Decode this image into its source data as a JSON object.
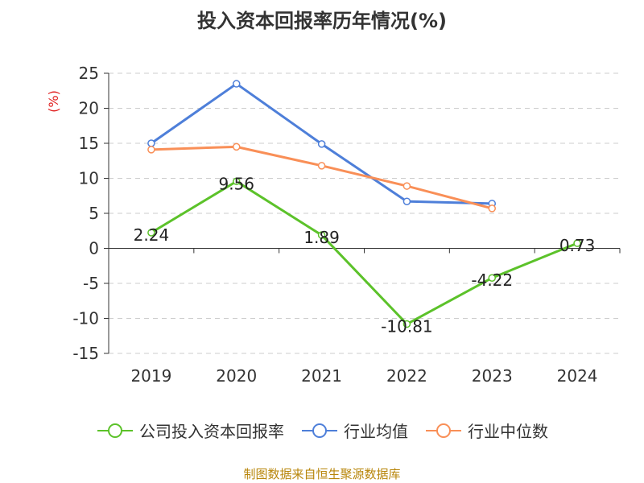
{
  "chart_data": {
    "type": "line",
    "title": "投入资本回报率历年情况(%)",
    "ylabel": "(%)",
    "xlabel": "",
    "categories": [
      "2019",
      "2020",
      "2021",
      "2022",
      "2023",
      "2024"
    ],
    "ylim": [
      -15,
      25
    ],
    "yticks": [
      25,
      20,
      15,
      10,
      5,
      0,
      -5,
      -10,
      -15
    ],
    "grid": true,
    "legend_position": "bottom",
    "series": [
      {
        "name": "公司投入资本回报率",
        "color": "#5cc22a",
        "values": [
          2.24,
          9.56,
          1.89,
          -10.81,
          -4.22,
          0.73
        ],
        "labels": [
          "2.24",
          "9.56",
          "1.89",
          "-10.81",
          "-4.22",
          "0.73"
        ]
      },
      {
        "name": "行业均值",
        "color": "#4e7fd9",
        "values": [
          15.0,
          23.5,
          14.9,
          6.7,
          6.4,
          null
        ]
      },
      {
        "name": "行业中位数",
        "color": "#f98f57",
        "values": [
          14.1,
          14.5,
          11.8,
          8.9,
          5.7,
          null
        ]
      }
    ]
  },
  "source_note": "制图数据来自恒生聚源数据库",
  "colors": {
    "axis": "#333333",
    "grid": "#cccccc",
    "ylabel": "#e02020"
  }
}
